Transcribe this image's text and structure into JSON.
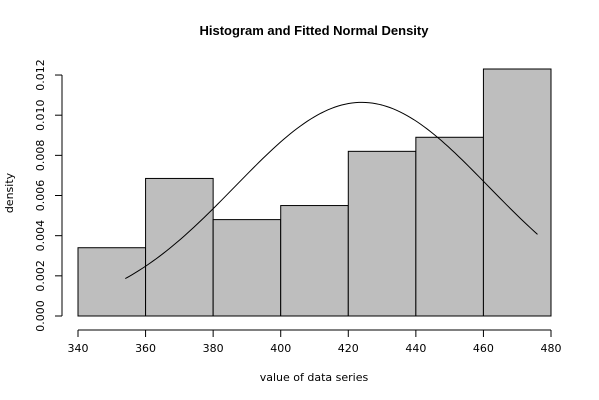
{
  "chart_data": {
    "type": "bar",
    "title": "Histogram and Fitted Normal Density",
    "xlabel": "value of data series",
    "ylabel": "density",
    "xlim": [
      340,
      480
    ],
    "ylim": [
      0,
      0.0123
    ],
    "x_ticks": [
      "340",
      "360",
      "380",
      "400",
      "420",
      "440",
      "460",
      "480"
    ],
    "y_ticks": [
      "0.000",
      "0.002",
      "0.004",
      "0.006",
      "0.008",
      "0.010",
      "0.012"
    ],
    "bins": [
      {
        "from": 340,
        "to": 360,
        "density": 0.0034
      },
      {
        "from": 360,
        "to": 380,
        "density": 0.00685
      },
      {
        "from": 380,
        "to": 400,
        "density": 0.0048
      },
      {
        "from": 400,
        "to": 420,
        "density": 0.0055
      },
      {
        "from": 420,
        "to": 440,
        "density": 0.0082
      },
      {
        "from": 440,
        "to": 460,
        "density": 0.0089
      },
      {
        "from": 460,
        "to": 480,
        "density": 0.0123
      }
    ],
    "normal_curve": {
      "mean": 424,
      "sd": 37.5,
      "x_range": [
        354,
        476
      ]
    },
    "bar_color": "#bebebe",
    "line_color": "#000000",
    "grid": false,
    "legend": false
  }
}
